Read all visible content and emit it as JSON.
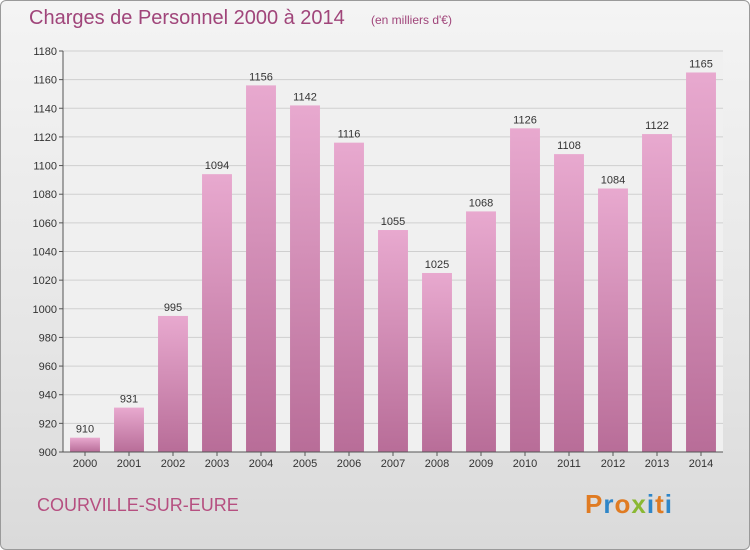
{
  "header": {
    "title": "Charges de Personnel 2000 à 2014",
    "subtitle": "(en milliers d'€)"
  },
  "footer": {
    "commune": "COURVILLE-SUR-EURE",
    "logo_text": "Proxiti"
  },
  "colors": {
    "bar_light": "#e8a9cf",
    "bar_dark": "#b86d98",
    "title": "#a0457a"
  },
  "chart_data": {
    "type": "bar",
    "title": "Charges de Personnel 2000 à 2014",
    "subtitle": "(en milliers d'€)",
    "categories": [
      "2000",
      "2001",
      "2002",
      "2003",
      "2004",
      "2005",
      "2006",
      "2007",
      "2008",
      "2009",
      "2010",
      "2011",
      "2012",
      "2013",
      "2014"
    ],
    "values": [
      910,
      931,
      995,
      1094,
      1156,
      1142,
      1116,
      1055,
      1025,
      1068,
      1126,
      1108,
      1084,
      1122,
      1165
    ],
    "data_labels": [
      "910",
      "931",
      "995",
      "1094",
      "1156",
      "1142",
      "1116",
      "1055",
      "1025",
      "1068",
      "1126",
      "1108",
      "1084",
      "1122",
      "1165"
    ],
    "yticks": [
      "900",
      "920",
      "940",
      "960",
      "980",
      "1000",
      "1020",
      "1040",
      "1060",
      "1080",
      "1100",
      "1120",
      "1140",
      "1160",
      "1180"
    ],
    "ylim": [
      900,
      1180
    ],
    "xlabel": "",
    "ylabel": "",
    "grid": true,
    "legend": "none"
  }
}
